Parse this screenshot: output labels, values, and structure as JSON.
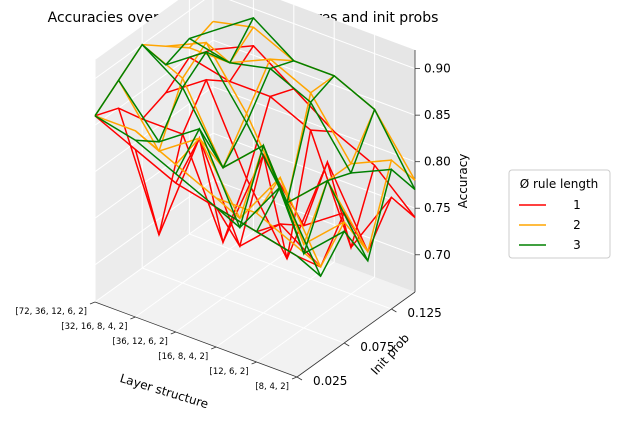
{
  "chart_data": {
    "type": "line",
    "projection": "3d-wireframe",
    "title": "Accuracies over different layer structures and init probs",
    "xlabel": "Layer structure",
    "ylabel": "Init prob",
    "zlabel": "Accuracy",
    "x_tick_labels": [
      "[72, 36, 12, 6, 2]",
      "[32, 16, 8, 4, 2]",
      "[36, 12, 6, 2]",
      "[16, 8, 4, 2]",
      "[12, 6, 2]",
      "[8, 4, 2]"
    ],
    "y_ticks": [
      0.025,
      0.075,
      0.125
    ],
    "y_tick_labels": [
      "0.025",
      "0.075",
      "0.125"
    ],
    "z_ticks": [
      0.7,
      0.75,
      0.8,
      0.85,
      0.9
    ],
    "z_tick_labels": [
      "0.70",
      "0.75",
      "0.80",
      "0.85",
      "0.90"
    ],
    "zlim": [
      0.66,
      0.92
    ],
    "grid": true,
    "legend": {
      "title": "Ø rule length",
      "placement": "right"
    },
    "y_values": [
      0.025,
      0.05,
      0.075,
      0.1,
      0.125,
      0.15
    ],
    "series": [
      {
        "name": "1",
        "color": "#ff0000",
        "z": [
          [
            0.86,
            0.85,
            0.82,
            0.83,
            0.85,
            0.84
          ],
          [
            0.84,
            0.73,
            0.82,
            0.86,
            0.84,
            0.86
          ],
          [
            0.82,
            0.85,
            0.72,
            0.77,
            0.84,
            0.83
          ],
          [
            0.81,
            0.75,
            0.83,
            0.7,
            0.82,
            0.8
          ],
          [
            0.8,
            0.79,
            0.77,
            0.82,
            0.71,
            0.78
          ],
          [
            0.79,
            0.76,
            0.8,
            0.74,
            0.78,
            0.74
          ]
        ]
      },
      {
        "name": "2",
        "color": "#ffa500",
        "z": [
          [
            0.86,
            0.88,
            0.9,
            0.88,
            0.86,
            0.87
          ],
          [
            0.86,
            0.82,
            0.88,
            0.9,
            0.86,
            0.88
          ],
          [
            0.84,
            0.85,
            0.8,
            0.84,
            0.88,
            0.86
          ],
          [
            0.82,
            0.78,
            0.84,
            0.76,
            0.86,
            0.86
          ],
          [
            0.82,
            0.84,
            0.75,
            0.8,
            0.8,
            0.84
          ],
          [
            0.8,
            0.76,
            0.79,
            0.74,
            0.82,
            0.78
          ]
        ]
      },
      {
        "name": "3",
        "color": "#008000",
        "z": [
          [
            0.86,
            0.88,
            0.9,
            0.86,
            0.87,
            0.86
          ],
          [
            0.85,
            0.83,
            0.87,
            0.89,
            0.86,
            0.89
          ],
          [
            0.83,
            0.86,
            0.8,
            0.83,
            0.87,
            0.86
          ],
          [
            0.81,
            0.77,
            0.84,
            0.76,
            0.85,
            0.86
          ],
          [
            0.8,
            0.83,
            0.74,
            0.8,
            0.79,
            0.84
          ],
          [
            0.79,
            0.75,
            0.78,
            0.73,
            0.81,
            0.77
          ]
        ]
      }
    ]
  }
}
